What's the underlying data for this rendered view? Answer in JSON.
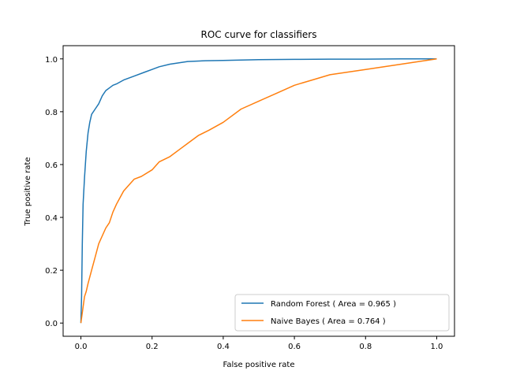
{
  "chart_data": {
    "type": "line",
    "title": "ROC curve for classifiers",
    "xlabel": "False positive rate",
    "ylabel": "True positive rate",
    "xlim": [
      -0.05,
      1.05
    ],
    "ylim": [
      -0.05,
      1.05
    ],
    "xticks": [
      "0.0",
      "0.2",
      "0.4",
      "0.6",
      "0.8",
      "1.0"
    ],
    "yticks": [
      "0.0",
      "0.2",
      "0.4",
      "0.6",
      "0.8",
      "1.0"
    ],
    "grid": false,
    "legend_position": "lower-right",
    "series": [
      {
        "name": "Random Forest ( Area = 0.965 )",
        "color": "#1f77b4",
        "x": [
          0.0,
          0.002,
          0.004,
          0.006,
          0.01,
          0.015,
          0.02,
          0.025,
          0.03,
          0.04,
          0.05,
          0.06,
          0.07,
          0.08,
          0.09,
          0.1,
          0.12,
          0.15,
          0.18,
          0.2,
          0.22,
          0.25,
          0.3,
          0.35,
          0.4,
          0.5,
          0.6,
          0.7,
          0.8,
          0.9,
          1.0
        ],
        "y": [
          0.0,
          0.1,
          0.3,
          0.45,
          0.55,
          0.65,
          0.72,
          0.76,
          0.79,
          0.81,
          0.83,
          0.86,
          0.88,
          0.89,
          0.9,
          0.905,
          0.92,
          0.935,
          0.95,
          0.96,
          0.97,
          0.98,
          0.99,
          0.993,
          0.994,
          0.997,
          0.998,
          0.999,
          0.999,
          1.0,
          1.0
        ]
      },
      {
        "name": "Naive Bayes ( Area = 0.764 )",
        "color": "#ff7f0e",
        "x": [
          0.0,
          0.005,
          0.01,
          0.015,
          0.02,
          0.03,
          0.04,
          0.05,
          0.06,
          0.07,
          0.08,
          0.09,
          0.1,
          0.12,
          0.14,
          0.15,
          0.17,
          0.2,
          0.22,
          0.25,
          0.28,
          0.3,
          0.33,
          0.36,
          0.4,
          0.45,
          0.5,
          0.55,
          0.6,
          0.65,
          0.7,
          0.8,
          0.9,
          0.95,
          1.0
        ],
        "y": [
          0.0,
          0.05,
          0.1,
          0.12,
          0.15,
          0.2,
          0.25,
          0.3,
          0.33,
          0.36,
          0.38,
          0.42,
          0.45,
          0.5,
          0.53,
          0.545,
          0.555,
          0.58,
          0.61,
          0.63,
          0.66,
          0.68,
          0.71,
          0.73,
          0.76,
          0.81,
          0.84,
          0.87,
          0.9,
          0.92,
          0.94,
          0.96,
          0.98,
          0.99,
          1.0
        ]
      }
    ]
  }
}
